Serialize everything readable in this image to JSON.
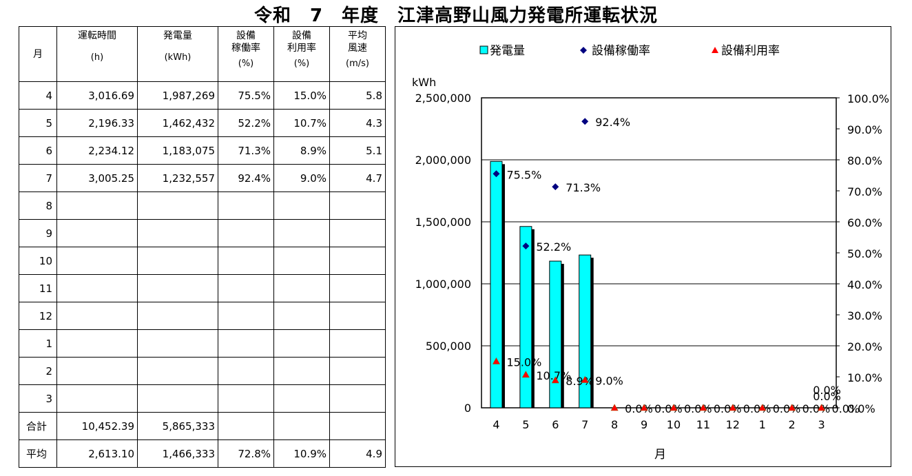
{
  "title": "令和　7　年度　江津高野山風力発電所運転状況",
  "table": {
    "headers": {
      "month": "月",
      "hours": "運転時間",
      "hours_unit": "(h)",
      "energy": "発電量",
      "energy_unit": "(kWh)",
      "avail_l1": "設備",
      "avail_l2": "稼働率",
      "avail_unit": "(%)",
      "util_l1": "設備",
      "util_l2": "利用率",
      "util_unit": "(%)",
      "wind_l1": "平均",
      "wind_l2": "風速",
      "wind_unit": "(m/s)"
    },
    "rows": [
      {
        "month": "4",
        "hours": "3,016.69",
        "energy": "1,987,269",
        "avail": "75.5%",
        "util": "15.0%",
        "wind": "5.8"
      },
      {
        "month": "5",
        "hours": "2,196.33",
        "energy": "1,462,432",
        "avail": "52.2%",
        "util": "10.7%",
        "wind": "4.3"
      },
      {
        "month": "6",
        "hours": "2,234.12",
        "energy": "1,183,075",
        "avail": "71.3%",
        "util": "8.9%",
        "wind": "5.1"
      },
      {
        "month": "7",
        "hours": "3,005.25",
        "energy": "1,232,557",
        "avail": "92.4%",
        "util": "9.0%",
        "wind": "4.7"
      },
      {
        "month": "8",
        "hours": "",
        "energy": "",
        "avail": "",
        "util": "",
        "wind": ""
      },
      {
        "month": "9",
        "hours": "",
        "energy": "",
        "avail": "",
        "util": "",
        "wind": ""
      },
      {
        "month": "10",
        "hours": "",
        "energy": "",
        "avail": "",
        "util": "",
        "wind": ""
      },
      {
        "month": "11",
        "hours": "",
        "energy": "",
        "avail": "",
        "util": "",
        "wind": ""
      },
      {
        "month": "12",
        "hours": "",
        "energy": "",
        "avail": "",
        "util": "",
        "wind": ""
      },
      {
        "month": "1",
        "hours": "",
        "energy": "",
        "avail": "",
        "util": "",
        "wind": ""
      },
      {
        "month": "2",
        "hours": "",
        "energy": "",
        "avail": "",
        "util": "",
        "wind": ""
      },
      {
        "month": "3",
        "hours": "",
        "energy": "",
        "avail": "",
        "util": "",
        "wind": ""
      }
    ],
    "total": {
      "label": "合計",
      "hours": "10,452.39",
      "energy": "5,865,333",
      "avail": "",
      "util": "",
      "wind": ""
    },
    "average": {
      "label": "平均",
      "hours": "2,613.10",
      "energy": "1,466,333",
      "avail": "72.8%",
      "util": "10.9%",
      "wind": "4.9"
    }
  },
  "chart_data": {
    "type": "bar",
    "categories": [
      "4",
      "5",
      "6",
      "7",
      "8",
      "9",
      "10",
      "11",
      "12",
      "1",
      "2",
      "3"
    ],
    "xlabel": "月",
    "ylabel_left": "kWh",
    "ylim_left": [
      0,
      2500000
    ],
    "ylim_right": [
      0,
      100
    ],
    "left_ticks": [
      "0",
      "500,000",
      "1,000,000",
      "1,500,000",
      "2,000,000",
      "2,500,000"
    ],
    "right_ticks": [
      "0.0%",
      "10.0%",
      "20.0%",
      "30.0%",
      "40.0%",
      "50.0%",
      "60.0%",
      "70.0%",
      "80.0%",
      "90.0%",
      "100.0%"
    ],
    "legend_position": "top",
    "grid": true,
    "series": [
      {
        "name": "発電量",
        "type": "bar",
        "axis": "left",
        "color": "#00FFFF",
        "values": [
          1987269,
          1462432,
          1183075,
          1232557,
          null,
          null,
          null,
          null,
          null,
          null,
          null,
          null
        ]
      },
      {
        "name": "設備稼働率",
        "type": "scatter",
        "axis": "right",
        "color": "#000080",
        "marker": "diamond",
        "values": [
          75.5,
          52.2,
          71.3,
          92.4,
          null,
          null,
          null,
          null,
          null,
          null,
          null,
          null
        ],
        "labels": [
          "75.5%",
          "52.2%",
          "71.3%",
          "92.4%",
          "",
          "",
          "",
          "",
          "",
          "",
          "",
          ""
        ]
      },
      {
        "name": "設備利用率",
        "type": "scatter",
        "axis": "right",
        "color": "#FF0000",
        "marker": "triangle",
        "values": [
          15.0,
          10.7,
          8.9,
          9.0,
          0,
          0,
          0,
          0,
          0,
          0,
          0,
          0
        ],
        "labels": [
          "15.0%",
          "10.7%",
          "8.9%",
          "9.0%",
          "0.0%",
          "0.0%",
          "0.0%",
          "0.0%",
          "0.0%",
          "0.0%",
          "0.0%",
          "0.0%"
        ]
      }
    ],
    "extra_labels": [
      "0.0%",
      "0.0%"
    ]
  }
}
